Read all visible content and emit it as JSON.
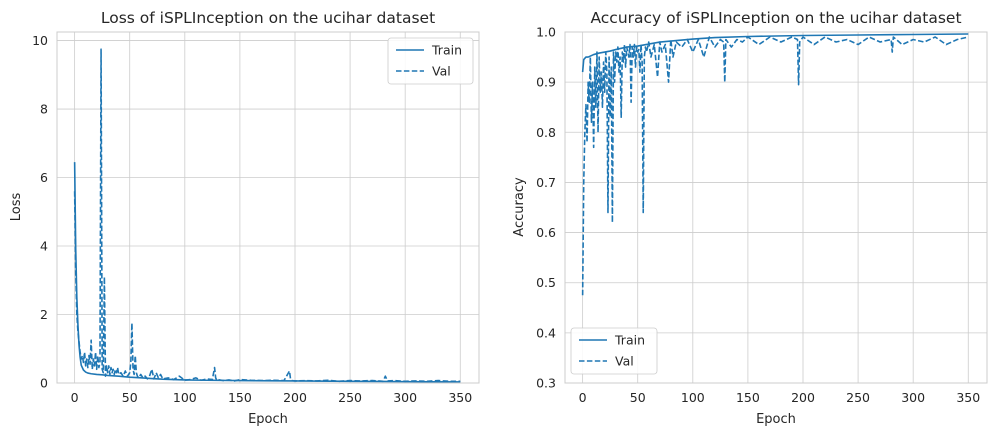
{
  "colors": {
    "series": "#1f77b4",
    "grid": "#cccccc",
    "text": "#262626"
  },
  "chart_data": [
    {
      "type": "line",
      "title": "Loss of iSPLInception on the ucihar dataset",
      "xlabel": "Epoch",
      "ylabel": "Loss",
      "xlim": [
        -16,
        367
      ],
      "ylim": [
        0,
        10.25
      ],
      "xticks": [
        0,
        50,
        100,
        150,
        200,
        250,
        300,
        350
      ],
      "yticks": [
        0,
        2,
        4,
        6,
        8,
        10
      ],
      "grid": true,
      "legend_position": "upper-right",
      "series": [
        {
          "name": "Train",
          "style": "solid",
          "x": [
            0,
            1,
            2,
            3,
            4,
            5,
            6,
            8,
            10,
            12,
            15,
            20,
            25,
            30,
            40,
            50,
            60,
            70,
            80,
            100,
            120,
            150,
            200,
            250,
            300,
            350
          ],
          "y": [
            6.45,
            3.9,
            2.5,
            1.7,
            1.1,
            0.75,
            0.52,
            0.38,
            0.32,
            0.29,
            0.27,
            0.25,
            0.24,
            0.22,
            0.2,
            0.17,
            0.15,
            0.13,
            0.11,
            0.09,
            0.08,
            0.07,
            0.06,
            0.05,
            0.04,
            0.03
          ]
        },
        {
          "name": "Val",
          "style": "dashed",
          "x": [
            0,
            1,
            2,
            3,
            4,
            5,
            6,
            7,
            8,
            9,
            10,
            11,
            12,
            13,
            14,
            15,
            16,
            17,
            18,
            19,
            20,
            21,
            22,
            23,
            24,
            25,
            26,
            27,
            28,
            29,
            30,
            31,
            32,
            33,
            34,
            35,
            36,
            37,
            38,
            39,
            40,
            42,
            44,
            46,
            48,
            50,
            51,
            52,
            53,
            54,
            55,
            56,
            57,
            58,
            60,
            62,
            64,
            66,
            68,
            70,
            72,
            74,
            76,
            78,
            80,
            85,
            90,
            95,
            100,
            105,
            110,
            115,
            120,
            125,
            127,
            128,
            129,
            130,
            135,
            140,
            145,
            150,
            160,
            170,
            180,
            190,
            195,
            196,
            197,
            200,
            210,
            220,
            230,
            240,
            250,
            260,
            270,
            280,
            282,
            284,
            290,
            300,
            310,
            320,
            330,
            340,
            350
          ],
          "y": [
            5.6,
            3.2,
            2.0,
            1.5,
            1.2,
            0.9,
            0.7,
            0.8,
            0.6,
            0.9,
            0.5,
            0.7,
            0.45,
            0.8,
            0.55,
            1.25,
            0.4,
            0.7,
            0.5,
            0.9,
            0.4,
            0.8,
            0.45,
            0.6,
            9.75,
            0.4,
            0.3,
            3.1,
            0.2,
            0.5,
            0.3,
            0.5,
            0.25,
            0.45,
            0.3,
            0.4,
            0.25,
            0.4,
            0.3,
            0.45,
            0.25,
            0.3,
            0.2,
            0.35,
            0.2,
            0.3,
            0.6,
            1.75,
            0.4,
            0.25,
            0.8,
            0.3,
            0.2,
            0.15,
            0.25,
            0.15,
            0.2,
            0.12,
            0.2,
            0.4,
            0.12,
            0.3,
            0.15,
            0.25,
            0.12,
            0.15,
            0.1,
            0.2,
            0.08,
            0.1,
            0.15,
            0.08,
            0.12,
            0.1,
            0.45,
            0.15,
            0.08,
            0.1,
            0.07,
            0.09,
            0.06,
            0.1,
            0.08,
            0.07,
            0.08,
            0.07,
            0.35,
            0.1,
            0.07,
            0.06,
            0.07,
            0.06,
            0.08,
            0.05,
            0.07,
            0.06,
            0.07,
            0.05,
            0.2,
            0.06,
            0.07,
            0.05,
            0.06,
            0.05,
            0.07,
            0.05,
            0.05
          ]
        }
      ]
    },
    {
      "type": "line",
      "title": "Accuracy of iSPLInception on the ucihar dataset",
      "xlabel": "Epoch",
      "ylabel": "Accuracy",
      "xlim": [
        -16,
        367
      ],
      "ylim": [
        0.3,
        1.0
      ],
      "xticks": [
        0,
        50,
        100,
        150,
        200,
        250,
        300,
        350
      ],
      "yticks": [
        0.3,
        0.4,
        0.5,
        0.6,
        0.7,
        0.8,
        0.9,
        1.0
      ],
      "grid": true,
      "legend_position": "lower-left",
      "series": [
        {
          "name": "Train",
          "style": "solid",
          "x": [
            0,
            1,
            3,
            5,
            10,
            15,
            20,
            25,
            30,
            40,
            50,
            60,
            70,
            80,
            100,
            120,
            150,
            200,
            250,
            300,
            350
          ],
          "y": [
            0.92,
            0.945,
            0.95,
            0.95,
            0.955,
            0.958,
            0.96,
            0.962,
            0.965,
            0.97,
            0.972,
            0.976,
            0.98,
            0.982,
            0.986,
            0.989,
            0.991,
            0.993,
            0.994,
            0.995,
            0.996
          ]
        },
        {
          "name": "Val",
          "style": "dashed",
          "x": [
            0,
            1,
            2,
            3,
            4,
            5,
            6,
            7,
            8,
            9,
            10,
            11,
            12,
            13,
            14,
            15,
            16,
            17,
            18,
            19,
            20,
            21,
            22,
            23,
            24,
            25,
            26,
            27,
            28,
            29,
            30,
            31,
            32,
            33,
            34,
            35,
            36,
            37,
            38,
            39,
            40,
            41,
            42,
            43,
            44,
            45,
            46,
            47,
            48,
            49,
            50,
            51,
            52,
            53,
            54,
            55,
            56,
            57,
            58,
            60,
            62,
            65,
            68,
            70,
            72,
            75,
            78,
            80,
            82,
            85,
            90,
            95,
            100,
            105,
            110,
            115,
            120,
            125,
            128,
            129,
            130,
            135,
            140,
            145,
            150,
            160,
            170,
            180,
            190,
            195,
            196,
            197,
            200,
            210,
            220,
            230,
            240,
            250,
            260,
            270,
            280,
            281,
            282,
            290,
            300,
            310,
            320,
            330,
            340,
            350
          ],
          "y": [
            0.475,
            0.7,
            0.8,
            0.855,
            0.78,
            0.9,
            0.86,
            0.95,
            0.82,
            0.9,
            0.77,
            0.93,
            0.85,
            0.96,
            0.8,
            0.95,
            0.88,
            0.92,
            0.85,
            0.94,
            0.88,
            0.96,
            0.92,
            0.64,
            0.95,
            0.83,
            0.93,
            0.62,
            0.96,
            0.9,
            0.96,
            0.94,
            0.97,
            0.92,
            0.95,
            0.83,
            0.96,
            0.94,
            0.975,
            0.93,
            0.97,
            0.96,
            0.95,
            0.975,
            0.86,
            0.97,
            0.95,
            0.975,
            0.93,
            0.97,
            0.96,
            0.965,
            0.92,
            0.975,
            0.94,
            0.64,
            0.95,
            0.97,
            0.96,
            0.98,
            0.95,
            0.975,
            0.91,
            0.98,
            0.96,
            0.975,
            0.9,
            0.985,
            0.95,
            0.98,
            0.97,
            0.985,
            0.96,
            0.985,
            0.95,
            0.99,
            0.97,
            0.985,
            0.98,
            0.9,
            0.985,
            0.97,
            0.985,
            0.98,
            0.99,
            0.975,
            0.99,
            0.98,
            0.99,
            0.985,
            0.895,
            0.98,
            0.99,
            0.975,
            0.99,
            0.98,
            0.985,
            0.975,
            0.99,
            0.98,
            0.985,
            0.96,
            0.99,
            0.975,
            0.985,
            0.98,
            0.99,
            0.975,
            0.985,
            0.99
          ]
        }
      ]
    }
  ]
}
